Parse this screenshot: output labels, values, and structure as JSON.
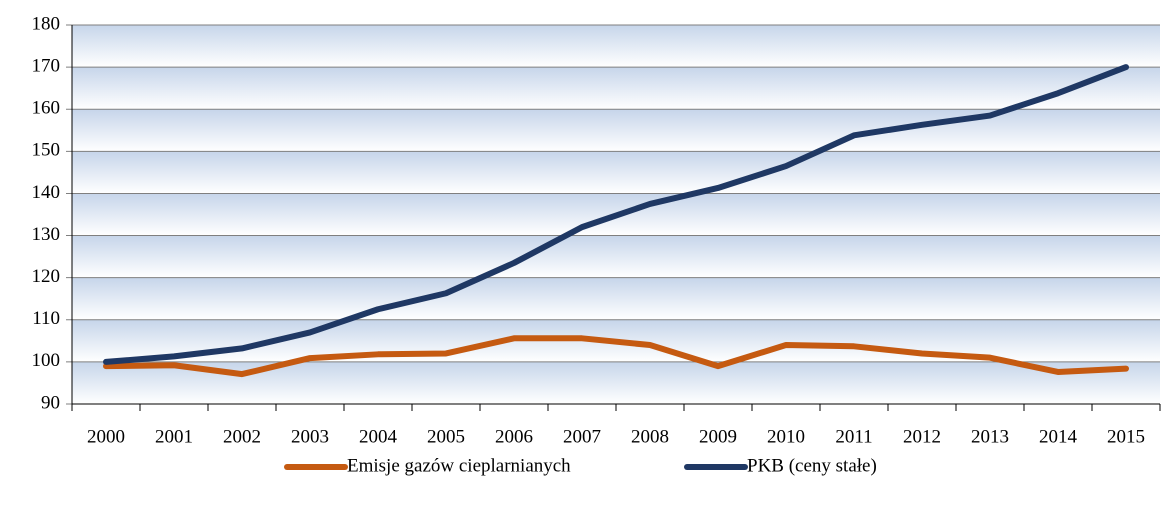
{
  "chart_data": {
    "type": "line",
    "categories": [
      "2000",
      "2001",
      "2002",
      "2003",
      "2004",
      "2005",
      "2006",
      "2007",
      "2008",
      "2009",
      "2010",
      "2011",
      "2012",
      "2013",
      "2014",
      "2015"
    ],
    "series": [
      {
        "name": "Emisje gazów cieplarnianych",
        "color": "#c55a11",
        "values": [
          99,
          99.2,
          97.1,
          100.9,
          101.8,
          102,
          105.6,
          105.6,
          104,
          99,
          104,
          103.7,
          102,
          101,
          97.6,
          98.4
        ]
      },
      {
        "name": "PKB (ceny stałe)",
        "color": "#1f3864",
        "values": [
          100,
          101.3,
          103.2,
          107,
          112.5,
          116.3,
          123.5,
          132,
          137.5,
          141.3,
          146.5,
          153.8,
          156.3,
          158.5,
          163.8,
          170
        ]
      }
    ],
    "ylim": [
      90,
      180
    ],
    "yticks": [
      90,
      100,
      110,
      120,
      130,
      140,
      150,
      160,
      170,
      180
    ],
    "grid": true,
    "legend": "bottom"
  }
}
